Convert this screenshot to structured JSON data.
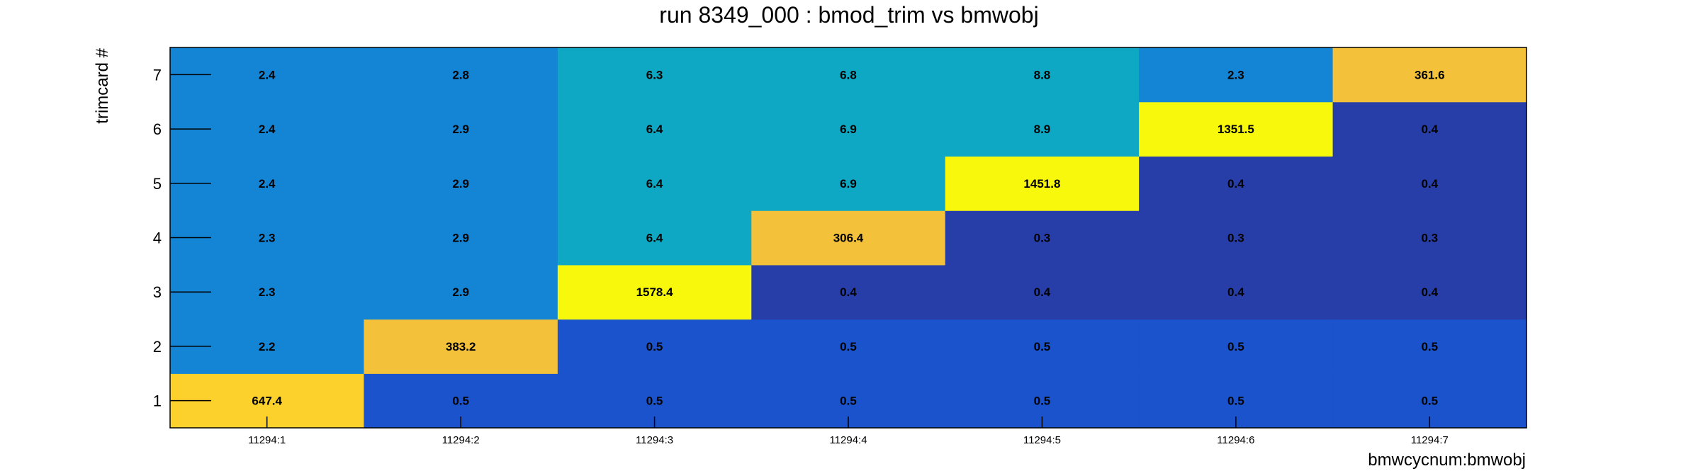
{
  "chart_data": {
    "type": "heatmap",
    "title": "run 8349_000 : bmod_trim vs bmwobj",
    "xlabel": "bmwcycnum:bmwobj",
    "ylabel": "trimcard #",
    "x_categories": [
      "11294:1",
      "11294:2",
      "11294:3",
      "11294:4",
      "11294:5",
      "11294:6",
      "11294:7"
    ],
    "y_categories": [
      "1",
      "2",
      "3",
      "4",
      "5",
      "6",
      "7"
    ],
    "values": [
      [
        647.4,
        2.2,
        2.3,
        2.3,
        2.4,
        2.4,
        2.4
      ],
      [
        0.5,
        383.2,
        2.9,
        2.9,
        2.9,
        2.9,
        2.8
      ],
      [
        0.5,
        0.5,
        1578.4,
        6.4,
        6.4,
        6.4,
        6.3
      ],
      [
        0.5,
        0.5,
        0.4,
        306.4,
        6.9,
        6.9,
        6.8
      ],
      [
        0.5,
        0.5,
        0.4,
        0.3,
        1451.8,
        8.9,
        8.8
      ],
      [
        0.5,
        0.5,
        0.4,
        0.3,
        0.4,
        1351.5,
        2.3
      ],
      [
        0.5,
        0.5,
        0.4,
        0.3,
        0.4,
        0.4,
        361.6
      ]
    ],
    "colors": {
      "dark_navy": "#273ea8",
      "royal_blue": "#1b53cc",
      "medium_blue": "#1484d4",
      "teal": "#0ea8c4",
      "gold": "#f4c23a",
      "amber": "#fcd12c",
      "yellow": "#f8f80c"
    },
    "cell_color_keys": [
      [
        "amber",
        "medium_blue",
        "medium_blue",
        "medium_blue",
        "medium_blue",
        "medium_blue",
        "medium_blue"
      ],
      [
        "royal_blue",
        "gold",
        "medium_blue",
        "medium_blue",
        "medium_blue",
        "medium_blue",
        "medium_blue"
      ],
      [
        "royal_blue",
        "royal_blue",
        "yellow",
        "teal",
        "teal",
        "teal",
        "teal"
      ],
      [
        "royal_blue",
        "royal_blue",
        "dark_navy",
        "gold",
        "teal",
        "teal",
        "teal"
      ],
      [
        "royal_blue",
        "royal_blue",
        "dark_navy",
        "dark_navy",
        "yellow",
        "teal",
        "teal"
      ],
      [
        "royal_blue",
        "royal_blue",
        "dark_navy",
        "dark_navy",
        "dark_navy",
        "yellow",
        "medium_blue"
      ],
      [
        "royal_blue",
        "royal_blue",
        "dark_navy",
        "dark_navy",
        "dark_navy",
        "dark_navy",
        "gold"
      ]
    ],
    "grid": false
  }
}
